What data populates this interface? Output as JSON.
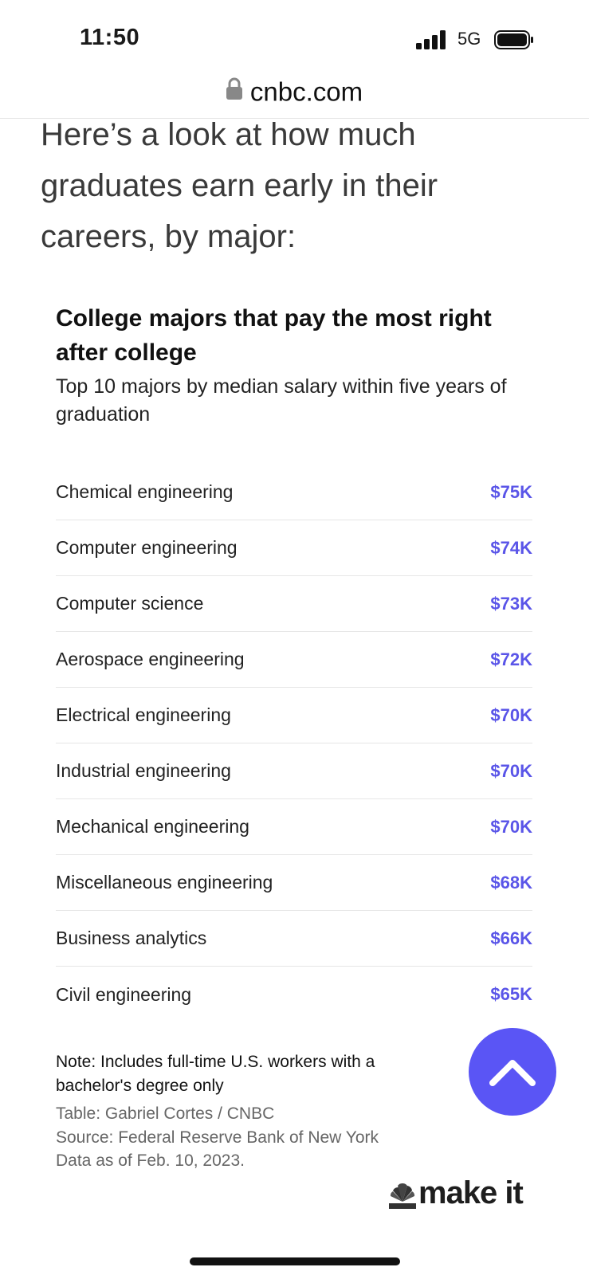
{
  "status_bar": {
    "time": "11:50",
    "network": "5G",
    "signal_icon": "signal-bars-icon",
    "battery_icon": "battery-icon"
  },
  "browser": {
    "url": "cnbc.com",
    "lock_icon": "lock-icon"
  },
  "article": {
    "intro": "Here’s a look at how much graduates earn early in their careers, by major:"
  },
  "table": {
    "title": "College majors that pay the most right after college",
    "subtitle": "Top 10 majors by median salary within five years of graduation",
    "rows": [
      {
        "major": "Chemical engineering",
        "salary": "$75K"
      },
      {
        "major": "Computer engineering",
        "salary": "$74K"
      },
      {
        "major": "Computer science",
        "salary": "$73K"
      },
      {
        "major": "Aerospace engineering",
        "salary": "$72K"
      },
      {
        "major": "Electrical engineering",
        "salary": "$70K"
      },
      {
        "major": "Industrial engineering",
        "salary": "$70K"
      },
      {
        "major": "Mechanical engineering",
        "salary": "$70K"
      },
      {
        "major": "Miscellaneous engineering",
        "salary": "$68K"
      },
      {
        "major": "Business analytics",
        "salary": "$66K"
      },
      {
        "major": "Civil engineering",
        "salary": "$65K"
      }
    ],
    "note": "Note: Includes full-time U.S. workers with a bachelor's degree only",
    "credit_table": "Table: Gabriel Cortes / CNBC",
    "credit_source": "Source: Federal Reserve Bank of New York",
    "credit_date": "Data as of Feb. 10, 2023."
  },
  "brand": {
    "text": "make it",
    "logo_icon": "cnbc-peacock-icon"
  },
  "fab": {
    "icon": "chevron-up-icon"
  },
  "colors": {
    "accent": "#5a55e8",
    "fab": "#5a55f5"
  }
}
